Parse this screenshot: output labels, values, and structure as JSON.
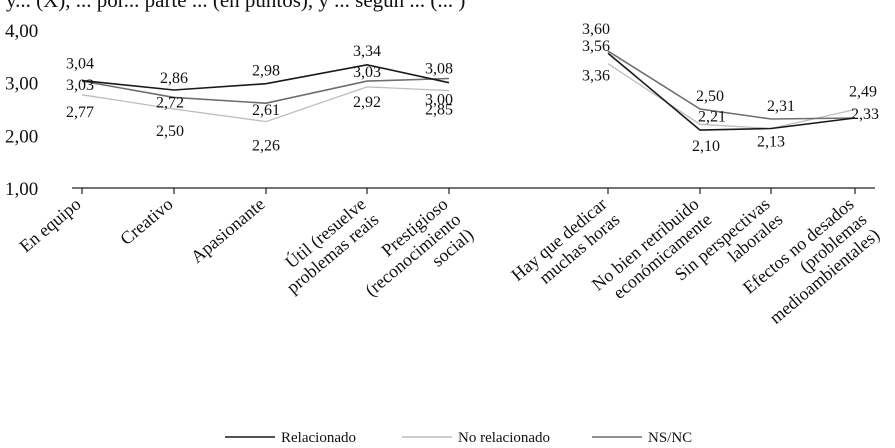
{
  "chart_data": {
    "type": "line",
    "title": "y... (X), ... por... parte ... (en puntos), y ... según ... (... )",
    "ylim": [
      1,
      4
    ],
    "yticks": [
      "1,00",
      "2,00",
      "3,00",
      "4,00"
    ],
    "grid": false,
    "legend_position": "bottom",
    "groups": [
      {
        "categories": [
          "En equipo",
          "Creativo",
          "Apasionante",
          "Útil (resuelve problemas reais",
          "Prestigioso (reconocimiento social)"
        ],
        "series": [
          {
            "name": "Relacionado",
            "color": "#1a1a1a",
            "values": [
              3.04,
              2.86,
              2.98,
              3.34,
              3.0
            ],
            "labels": [
              "3,04",
              "2,86",
              "2,98",
              "3,34",
              "3,00"
            ]
          },
          {
            "name": "No relacionado",
            "color": "#bdbdbd",
            "values": [
              2.77,
              2.5,
              2.26,
              2.92,
              2.85
            ],
            "labels": [
              "2,77",
              "2,50",
              "2,26",
              "2,92",
              "2,85"
            ]
          },
          {
            "name": "NS/NC",
            "color": "#6e6e6e",
            "values": [
              3.03,
              2.72,
              2.61,
              3.03,
              3.08
            ],
            "labels": [
              "3,03",
              "2,72",
              "2,61",
              "3,03",
              "3,08"
            ]
          }
        ]
      },
      {
        "categories": [
          "Hay que dedicar muchas horas",
          "No bien retribuido económicamente",
          "Sin perspectivas laborales",
          "Efectos no desados (problemas medioambientales)"
        ],
        "series": [
          {
            "name": "Relacionado",
            "color": "#1a1a1a",
            "values": [
              3.56,
              2.1,
              2.13,
              2.33
            ],
            "labels": [
              "3,56",
              "2,10",
              "2,13",
              "2,33"
            ]
          },
          {
            "name": "No relacionado",
            "color": "#bdbdbd",
            "values": [
              3.36,
              2.21,
              2.13,
              2.49
            ],
            "labels": [
              "3,36",
              "2,21",
              "",
              "2,49"
            ]
          },
          {
            "name": "NS/NC",
            "color": "#6e6e6e",
            "values": [
              3.6,
              2.5,
              2.31,
              2.33
            ],
            "labels": [
              "3,60",
              "2,50",
              "2,31",
              ""
            ]
          }
        ]
      }
    ],
    "category_label_lines": [
      [
        "En equipo"
      ],
      [
        "Creativo"
      ],
      [
        "Apasionante"
      ],
      [
        "Útil (resuelve",
        "problemas reais"
      ],
      [
        "Prestigioso",
        "(reconocimiento",
        "social)"
      ],
      [
        "Hay que dedicar",
        "muchas horas"
      ],
      [
        "No bien retribuido",
        "económicamente"
      ],
      [
        "Sin perspectivas",
        "laborales"
      ],
      [
        "Efectos no desados",
        "(problemas",
        "medioambientales)"
      ]
    ],
    "legend": [
      {
        "name": "Relacionado",
        "color": "#1a1a1a"
      },
      {
        "name": "No relacionado",
        "color": "#bdbdbd"
      },
      {
        "name": "NS/NC",
        "color": "#6e6e6e"
      }
    ]
  }
}
